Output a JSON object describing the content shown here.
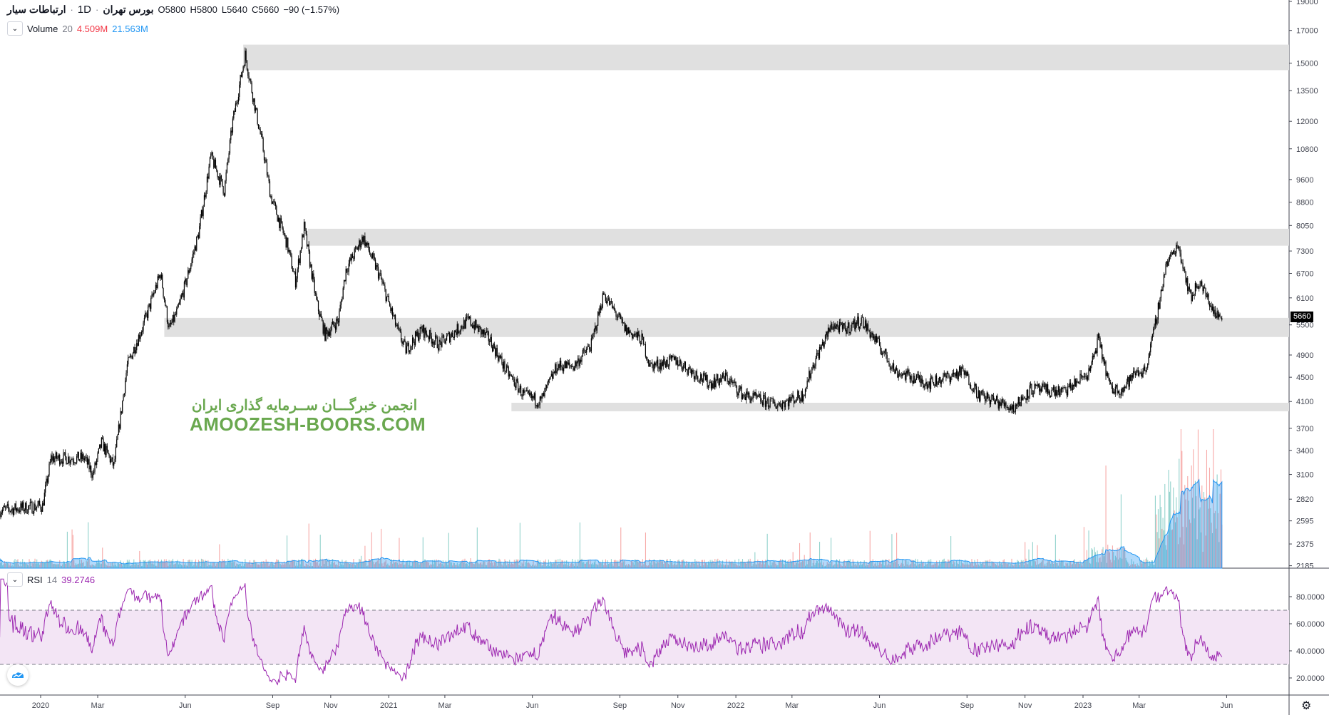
{
  "header": {
    "symbol": "ارتباطات سیار",
    "interval": "1D",
    "exchange": "بورس تهران",
    "open": "O5800",
    "high": "H5800",
    "low": "L5640",
    "close": "C5660",
    "change": "−90 (−1.57%)"
  },
  "volume_legend": {
    "name": "Volume",
    "length": "20",
    "value": "4.509M",
    "ma": "21.563M",
    "value_color": "#f23645",
    "ma_color": "#2196f3"
  },
  "rsi_legend": {
    "name": "RSI",
    "length": "14",
    "value": "39.2746",
    "color": "#9c27b0"
  },
  "last_price": "5660",
  "watermark": {
    "line1": "انجمن خبرگـــان ســرمایه گذاری ایران",
    "line2": "AMOOZESH-BOORS.COM"
  },
  "chart_data": {
    "type": "candlestick",
    "price_scale": "log",
    "ylim": [
      2185,
      19000
    ],
    "y_ticks": [
      "19000",
      "17000",
      "15000",
      "13500",
      "12000",
      "10800",
      "9600",
      "8800",
      "8050",
      "7300",
      "6700",
      "6100",
      "5500",
      "4900",
      "4500",
      "4100",
      "3700",
      "3400",
      "3100",
      "2820",
      "2595",
      "2375",
      "2185"
    ],
    "x_ticks": [
      {
        "label": "2020",
        "date": "2020-01-01"
      },
      {
        "label": "Mar",
        "date": "2020-03-01"
      },
      {
        "label": "Jun",
        "date": "2020-06-01"
      },
      {
        "label": "Sep",
        "date": "2020-09-01"
      },
      {
        "label": "Nov",
        "date": "2020-11-01"
      },
      {
        "label": "2021",
        "date": "2021-01-01"
      },
      {
        "label": "Mar",
        "date": "2021-03-01"
      },
      {
        "label": "Jun",
        "date": "2021-06-01"
      },
      {
        "label": "Sep",
        "date": "2021-09-01"
      },
      {
        "label": "Nov",
        "date": "2021-11-01"
      },
      {
        "label": "2022",
        "date": "2022-01-01"
      },
      {
        "label": "Mar",
        "date": "2022-03-01"
      },
      {
        "label": "Jun",
        "date": "2022-06-01"
      },
      {
        "label": "Sep",
        "date": "2022-09-01"
      },
      {
        "label": "Nov",
        "date": "2022-11-01"
      },
      {
        "label": "2023",
        "date": "2023-01-01"
      },
      {
        "label": "Mar",
        "date": "2023-03-01"
      },
      {
        "label": "Jun",
        "date": "2023-06-01"
      }
    ],
    "close_path": [
      [
        "2019-11-19",
        2700
      ],
      [
        "2020-01-03",
        2750
      ],
      [
        "2020-01-12",
        3300
      ],
      [
        "2020-02-16",
        3300
      ],
      [
        "2020-02-25",
        3100
      ],
      [
        "2020-03-05",
        3500
      ],
      [
        "2020-03-18",
        3200
      ],
      [
        "2020-04-01",
        4700
      ],
      [
        "2020-04-18",
        5500
      ],
      [
        "2020-05-06",
        6700
      ],
      [
        "2020-05-15",
        5400
      ],
      [
        "2020-05-24",
        5800
      ],
      [
        "2020-06-02",
        6500
      ],
      [
        "2020-06-15",
        7800
      ],
      [
        "2020-06-28",
        10500
      ],
      [
        "2020-07-12",
        9200
      ],
      [
        "2020-07-21",
        12000
      ],
      [
        "2020-08-03",
        15500
      ],
      [
        "2020-08-12",
        13000
      ],
      [
        "2020-08-21",
        11000
      ],
      [
        "2020-08-30",
        9000
      ],
      [
        "2020-09-16",
        7500
      ],
      [
        "2020-09-25",
        6500
      ],
      [
        "2020-10-04",
        8000
      ],
      [
        "2020-10-17",
        6000
      ],
      [
        "2020-10-26",
        5300
      ],
      [
        "2020-11-09",
        5600
      ],
      [
        "2020-11-17",
        6800
      ],
      [
        "2020-12-05",
        7700
      ],
      [
        "2020-12-23",
        6600
      ],
      [
        "2021-01-10",
        5400
      ],
      [
        "2021-01-19",
        5000
      ],
      [
        "2021-02-05",
        5400
      ],
      [
        "2021-02-23",
        5100
      ],
      [
        "2021-03-26",
        5600
      ],
      [
        "2021-04-17",
        5200
      ],
      [
        "2021-05-05",
        4600
      ],
      [
        "2021-05-23",
        4200
      ],
      [
        "2021-06-10",
        4100
      ],
      [
        "2021-06-27",
        4700
      ],
      [
        "2021-07-15",
        4700
      ],
      [
        "2021-08-02",
        5100
      ],
      [
        "2021-08-15",
        6200
      ],
      [
        "2021-09-07",
        5400
      ],
      [
        "2021-09-24",
        5200
      ],
      [
        "2021-10-03",
        4700
      ],
      [
        "2021-10-30",
        4800
      ],
      [
        "2021-12-04",
        4400
      ],
      [
        "2021-12-22",
        4500
      ],
      [
        "2022-01-09",
        4200
      ],
      [
        "2022-02-13",
        4050
      ],
      [
        "2022-03-12",
        4200
      ],
      [
        "2022-03-25",
        4800
      ],
      [
        "2022-04-12",
        5500
      ],
      [
        "2022-04-25",
        5400
      ],
      [
        "2022-05-13",
        5600
      ],
      [
        "2022-05-31",
        5100
      ],
      [
        "2022-06-18",
        4600
      ],
      [
        "2022-07-23",
        4400
      ],
      [
        "2022-08-28",
        4600
      ],
      [
        "2022-09-14",
        4200
      ],
      [
        "2022-10-20",
        4000
      ],
      [
        "2022-11-07",
        4300
      ],
      [
        "2022-12-12",
        4250
      ],
      [
        "2023-01-08",
        4600
      ],
      [
        "2023-01-17",
        5200
      ],
      [
        "2023-01-30",
        4300
      ],
      [
        "2023-02-12",
        4300
      ],
      [
        "2023-02-26",
        4600
      ],
      [
        "2023-03-07",
        4600
      ],
      [
        "2023-03-16",
        5300
      ],
      [
        "2023-03-29",
        6900
      ],
      [
        "2023-04-11",
        7500
      ],
      [
        "2023-04-24",
        6100
      ],
      [
        "2023-05-03",
        6500
      ],
      [
        "2023-05-21",
        5700
      ],
      [
        "2023-05-28",
        5660
      ]
    ],
    "zones": [
      {
        "from": "2020-08-01",
        "low": 14600,
        "high": 16100
      },
      {
        "from": "2020-10-08",
        "low": 7450,
        "high": 7950
      },
      {
        "from": "2020-05-10",
        "low": 5250,
        "high": 5650
      },
      {
        "from": "2021-05-10",
        "low": 3950,
        "high": 4080
      }
    ],
    "rsi": {
      "levels": [
        70,
        30
      ],
      "ticks": [
        "80.0000",
        "60.0000",
        "40.0000",
        "20.0000"
      ],
      "ylim": [
        10,
        95
      ]
    },
    "colors": {
      "candle": "#000000",
      "zone": "#e0e0e0",
      "vol_up": "#26a69a",
      "vol_down": "#ef5350",
      "vol_ma": "#2196f3",
      "rsi": "#9c27b0",
      "rsi_band": "#f3e5f5"
    }
  }
}
